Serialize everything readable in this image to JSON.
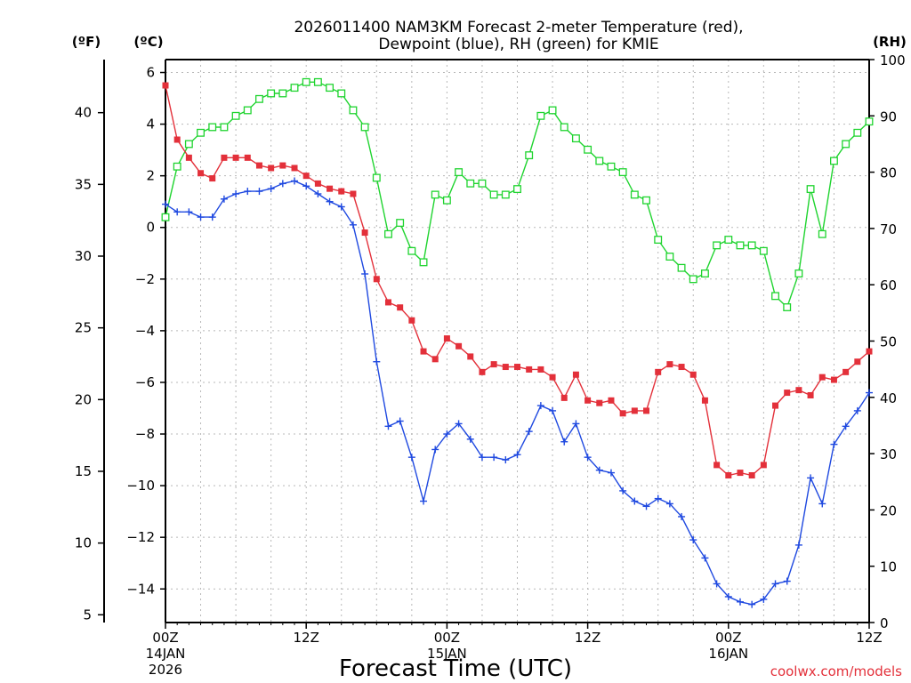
{
  "chart_data": {
    "type": "line",
    "title_line1": "2026011400 NAM3KM Forecast 2-meter Temperature (red),",
    "title_line2": "Dewpoint (blue), RH (green) for KMIE",
    "xlabel": "Forecast Time (UTC)",
    "credit": "coolwx.com/models",
    "left_unit_f": "(ºF)",
    "left_unit_c": "(ºC)",
    "right_unit": "(RH)",
    "hours_range": [
      0,
      60
    ],
    "celsius_range": [
      -15.3,
      6.5
    ],
    "rh_range": [
      0,
      100
    ],
    "x_ticks": [
      {
        "hour": 0,
        "label": "00Z",
        "date": "14JAN",
        "year": "2026"
      },
      {
        "hour": 12,
        "label": "12Z",
        "date": "",
        "year": ""
      },
      {
        "hour": 24,
        "label": "00Z",
        "date": "15JAN",
        "year": ""
      },
      {
        "hour": 36,
        "label": "12Z",
        "date": "",
        "year": ""
      },
      {
        "hour": 48,
        "label": "00Z",
        "date": "16JAN",
        "year": ""
      },
      {
        "hour": 60,
        "label": "12Z",
        "date": "",
        "year": ""
      }
    ],
    "celsius_ticks": [
      6,
      4,
      2,
      0,
      -2,
      -4,
      -6,
      -8,
      -10,
      -12,
      -14
    ],
    "fahrenheit_ticks": [
      40,
      35,
      30,
      25,
      20,
      15,
      10,
      5
    ],
    "rh_ticks": [
      100,
      90,
      80,
      70,
      60,
      50,
      40,
      30,
      20,
      10,
      0
    ],
    "series": [
      {
        "name": "2-meter Temperature (°C)",
        "color": "#e3303a",
        "marker": "filled-square",
        "values": [
          5.5,
          3.4,
          2.7,
          2.1,
          1.9,
          2.7,
          2.7,
          2.7,
          2.4,
          2.3,
          2.4,
          2.3,
          2.0,
          1.7,
          1.5,
          1.4,
          1.3,
          -0.2,
          -2.0,
          -2.9,
          -3.1,
          -3.6,
          -4.8,
          -5.1,
          -4.3,
          -4.6,
          -5.0,
          -5.6,
          -5.3,
          -5.4,
          -5.4,
          -5.5,
          -5.5,
          -5.8,
          -6.6,
          -5.7,
          -6.7,
          -6.8,
          -6.7,
          -7.2,
          -7.1,
          -7.1,
          -5.6,
          -5.3,
          -5.4,
          -5.7,
          -6.7,
          -9.2,
          -9.6,
          -9.5,
          -9.6,
          -9.2,
          -6.9,
          -6.4,
          -6.3,
          -6.5,
          -5.8,
          -5.9,
          -5.6,
          -5.2,
          -4.8
        ]
      },
      {
        "name": "Dewpoint (°C)",
        "color": "#1f49e0",
        "marker": "plus",
        "values": [
          0.9,
          0.6,
          0.6,
          0.4,
          0.4,
          1.1,
          1.3,
          1.4,
          1.4,
          1.5,
          1.7,
          1.8,
          1.6,
          1.3,
          1.0,
          0.8,
          0.1,
          -1.8,
          -5.2,
          -7.7,
          -7.5,
          -8.9,
          -10.6,
          -8.6,
          -8.0,
          -7.6,
          -8.2,
          -8.9,
          -8.9,
          -9.0,
          -8.8,
          -7.9,
          -6.9,
          -7.1,
          -8.3,
          -7.6,
          -8.9,
          -9.4,
          -9.5,
          -10.2,
          -10.6,
          -10.8,
          -10.5,
          -10.7,
          -11.2,
          -12.1,
          -12.8,
          -13.8,
          -14.3,
          -14.5,
          -14.6,
          -14.4,
          -13.8,
          -13.7,
          -12.3,
          -9.7,
          -10.7,
          -8.4,
          -7.7,
          -7.1,
          -6.4
        ]
      },
      {
        "name": "RH (%)",
        "color": "#1fd42f",
        "marker": "open-square",
        "values": [
          72,
          81,
          85,
          87,
          88,
          88,
          90,
          91,
          93,
          94,
          94,
          95,
          96,
          96,
          95,
          94,
          91,
          88,
          79,
          69,
          71,
          66,
          64,
          76,
          75,
          80,
          78,
          78,
          76,
          76,
          77,
          83,
          90,
          91,
          88,
          86,
          84,
          82,
          81,
          80,
          76,
          75,
          68,
          65,
          63,
          61,
          62,
          67,
          68,
          67,
          67,
          66,
          58,
          56,
          62,
          77,
          69,
          82,
          85,
          87,
          89
        ]
      }
    ]
  }
}
